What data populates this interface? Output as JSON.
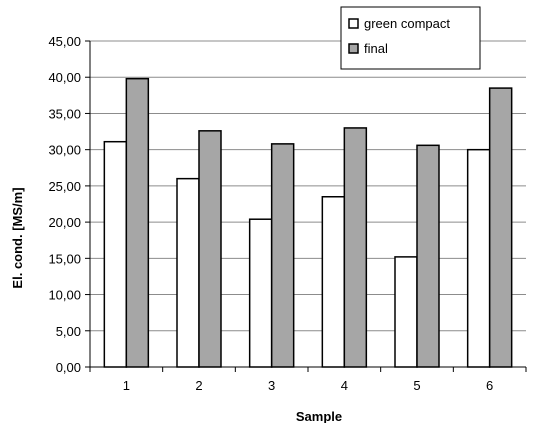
{
  "chart_data": {
    "type": "bar",
    "categories": [
      "1",
      "2",
      "3",
      "4",
      "5",
      "6"
    ],
    "series": [
      {
        "name": "green compact",
        "values": [
          31.1,
          26.0,
          20.4,
          23.5,
          15.2,
          30.0
        ],
        "color": "#ffffff"
      },
      {
        "name": "final",
        "values": [
          39.8,
          32.6,
          30.8,
          33.0,
          30.6,
          38.5
        ],
        "color": "#a6a6a6"
      }
    ],
    "xlabel": "Sample",
    "ylabel": "El. cond. [MS/m]",
    "ylim": [
      0,
      45
    ],
    "ytick_step": 5,
    "ytick_labels": [
      "0,00",
      "5,00",
      "10,00",
      "15,00",
      "20,00",
      "25,00",
      "30,00",
      "35,00",
      "40,00",
      "45,00"
    ],
    "grid": true,
    "legend_position": "top-right"
  }
}
